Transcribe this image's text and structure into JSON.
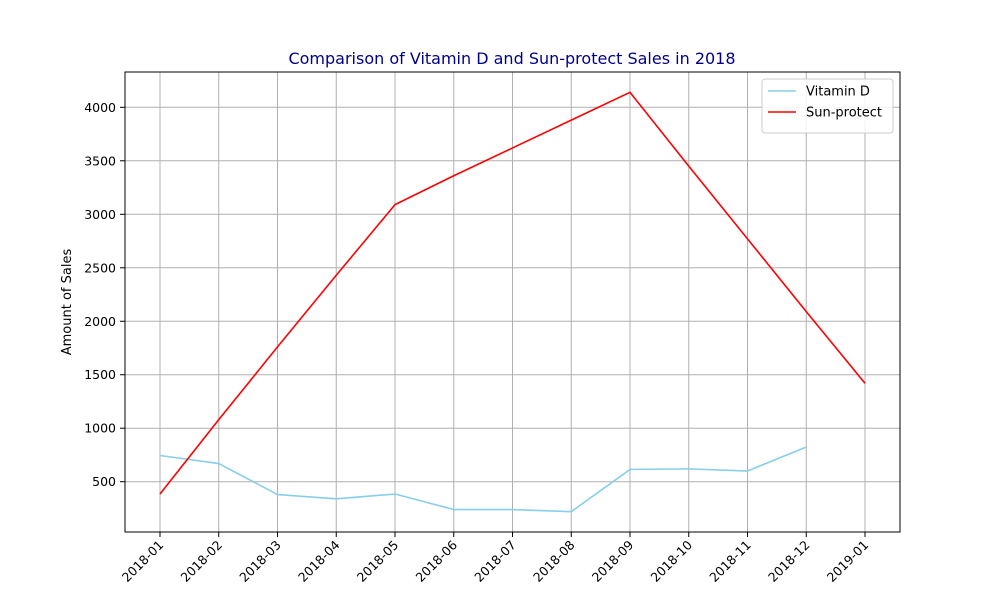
{
  "chart_data": {
    "type": "line",
    "title": "Comparison of Vitamin D and Sun-protect Sales in 2018",
    "title_color": "#00008b",
    "xlabel": "",
    "ylabel": "Amount of Sales",
    "x": [
      "2018-01",
      "2018-02",
      "2018-03",
      "2018-04",
      "2018-05",
      "2018-06",
      "2018-07",
      "2018-08",
      "2018-09",
      "2018-10",
      "2018-11",
      "2018-12",
      "2019-01"
    ],
    "ylim": [
      30,
      4330
    ],
    "yticks": [
      500,
      1000,
      1500,
      2000,
      2500,
      3000,
      3500,
      4000
    ],
    "grid": true,
    "legend_position": "top-right",
    "series": [
      {
        "name": "Vitamin D",
        "color": "#87ceeb",
        "values": [
          745,
          670,
          380,
          340,
          385,
          240,
          240,
          220,
          615,
          620,
          600,
          825,
          null
        ]
      },
      {
        "name": "Sun-protect",
        "color": "#ff0000",
        "values": [
          385,
          1080,
          1760,
          2430,
          3090,
          3360,
          3620,
          3880,
          4140,
          3450,
          2770,
          2090,
          1420
        ]
      }
    ]
  }
}
